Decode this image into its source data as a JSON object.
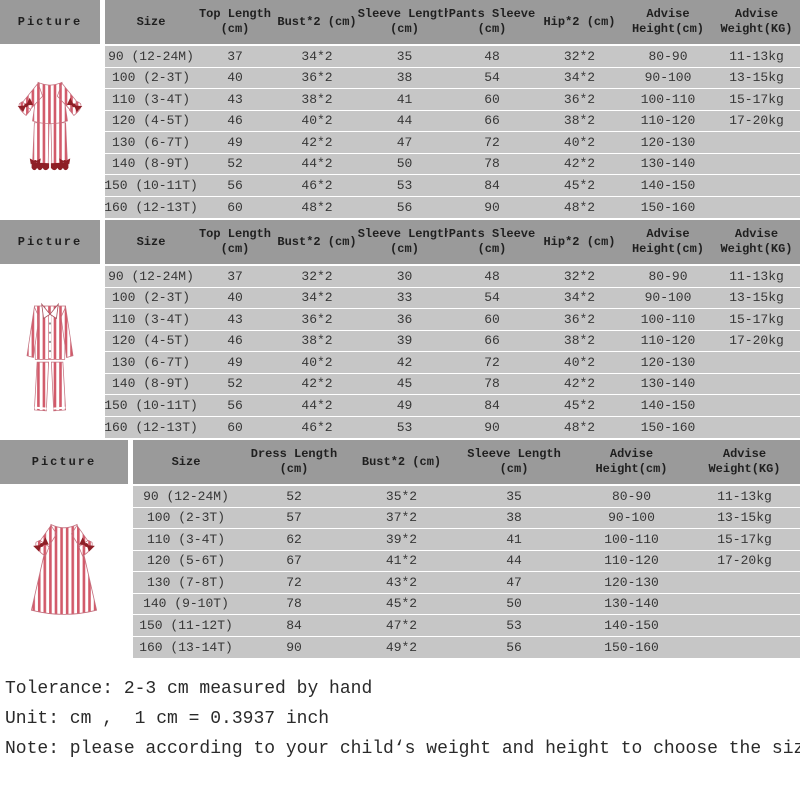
{
  "colors": {
    "header_bg": "#9a9a9a",
    "row_bg": "#c6c6c6",
    "stripe_red": "#d25a6a",
    "bow_maroon": "#8e1f26"
  },
  "tables": [
    {
      "picture_header": "Picture",
      "picture": "striped-ruffle-pajama-set-photo",
      "columns": [
        "Size",
        "Top Length\n(cm)",
        "Bust*2 (cm)",
        "Sleeve Length\n(cm)",
        "Pants Sleeve\n(cm)",
        "Hip*2 (cm)",
        "Advise\nHeight(cm)",
        "Advise\nWeight(KG)"
      ],
      "rows": [
        [
          "90 (12-24M)",
          "37",
          "34*2",
          "35",
          "48",
          "32*2",
          "80-90",
          "11-13kg"
        ],
        [
          "100 (2-3T)",
          "40",
          "36*2",
          "38",
          "54",
          "34*2",
          "90-100",
          "13-15kg"
        ],
        [
          "110 (3-4T)",
          "43",
          "38*2",
          "41",
          "60",
          "36*2",
          "100-110",
          "15-17kg"
        ],
        [
          "120 (4-5T)",
          "46",
          "40*2",
          "44",
          "66",
          "38*2",
          "110-120",
          "17-20kg"
        ],
        [
          "130 (6-7T)",
          "49",
          "42*2",
          "47",
          "72",
          "40*2",
          "120-130",
          ""
        ],
        [
          "140 (8-9T)",
          "52",
          "44*2",
          "50",
          "78",
          "42*2",
          "130-140",
          ""
        ],
        [
          "150 (10-11T)",
          "56",
          "46*2",
          "53",
          "84",
          "45*2",
          "140-150",
          ""
        ],
        [
          "160 (12-13T)",
          "60",
          "48*2",
          "56",
          "90",
          "48*2",
          "150-160",
          ""
        ]
      ]
    },
    {
      "picture_header": "Picture",
      "picture": "striped-button-up-pajama-set-photo",
      "columns": [
        "Size",
        "Top Length\n(cm)",
        "Bust*2 (cm)",
        "Sleeve Length\n(cm)",
        "Pants Sleeve\n(cm)",
        "Hip*2 (cm)",
        "Advise\nHeight(cm)",
        "Advise\nWeight(KG)"
      ],
      "rows": [
        [
          "90 (12-24M)",
          "37",
          "32*2",
          "30",
          "48",
          "32*2",
          "80-90",
          "11-13kg"
        ],
        [
          "100 (2-3T)",
          "40",
          "34*2",
          "33",
          "54",
          "34*2",
          "90-100",
          "13-15kg"
        ],
        [
          "110 (3-4T)",
          "43",
          "36*2",
          "36",
          "60",
          "36*2",
          "100-110",
          "15-17kg"
        ],
        [
          "120 (4-5T)",
          "46",
          "38*2",
          "39",
          "66",
          "38*2",
          "110-120",
          "17-20kg"
        ],
        [
          "130 (6-7T)",
          "49",
          "40*2",
          "42",
          "72",
          "40*2",
          "120-130",
          ""
        ],
        [
          "140 (8-9T)",
          "52",
          "42*2",
          "45",
          "78",
          "42*2",
          "130-140",
          ""
        ],
        [
          "150 (10-11T)",
          "56",
          "44*2",
          "49",
          "84",
          "45*2",
          "140-150",
          ""
        ],
        [
          "160 (12-13T)",
          "60",
          "46*2",
          "53",
          "90",
          "48*2",
          "150-160",
          ""
        ]
      ]
    },
    {
      "picture_header": "Picture",
      "picture": "striped-dress-photo",
      "columns": [
        "Size",
        "Dress Length\n(cm)",
        "Bust*2 (cm)",
        "Sleeve Length\n(cm)",
        "Advise\nHeight(cm)",
        "Advise\nWeight(KG)"
      ],
      "rows": [
        [
          "90 (12-24M)",
          "52",
          "35*2",
          "35",
          "80-90",
          "11-13kg"
        ],
        [
          "100 (2-3T)",
          "57",
          "37*2",
          "38",
          "90-100",
          "13-15kg"
        ],
        [
          "110 (3-4T)",
          "62",
          "39*2",
          "41",
          "100-110",
          "15-17kg"
        ],
        [
          "120 (5-6T)",
          "67",
          "41*2",
          "44",
          "110-120",
          "17-20kg"
        ],
        [
          "130 (7-8T)",
          "72",
          "43*2",
          "47",
          "120-130",
          ""
        ],
        [
          "140 (9-10T)",
          "78",
          "45*2",
          "50",
          "130-140",
          ""
        ],
        [
          "150 (11-12T)",
          "84",
          "47*2",
          "53",
          "140-150",
          ""
        ],
        [
          "160 (13-14T)",
          "90",
          "49*2",
          "56",
          "150-160",
          ""
        ]
      ]
    }
  ],
  "notes": [
    "Tolerance: 2-3 cm measured by hand",
    "Unit: cm ,  1 cm = 0.3937 inch",
    "Note: please according to your child‘s weight and height to choose the size"
  ]
}
